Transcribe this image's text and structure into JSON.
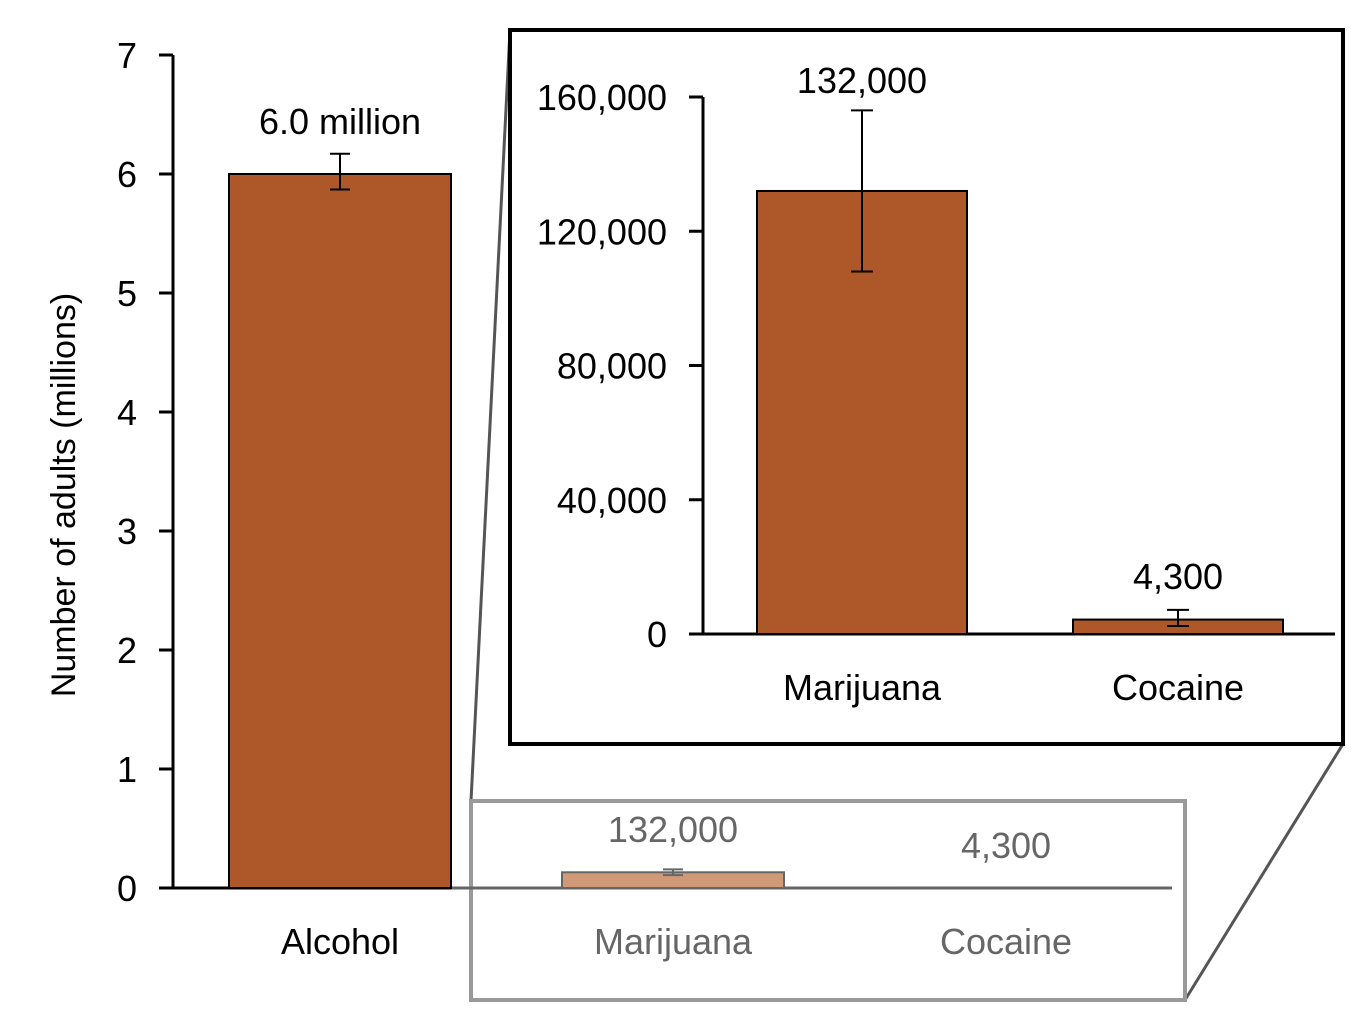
{
  "chart_data": [
    {
      "type": "bar",
      "ylabel": "Number of adults (millions)",
      "ylim": [
        0,
        7
      ],
      "yticks": [
        "0",
        "1",
        "2",
        "3",
        "4",
        "5",
        "6",
        "7"
      ],
      "categories": [
        "Alcohol",
        "Marijuana",
        "Cocaine"
      ],
      "values": [
        6.0,
        0.132,
        0.0043
      ],
      "error_low": [
        5.87,
        0.108,
        0.0024
      ],
      "error_high": [
        6.17,
        0.156,
        0.0072
      ],
      "data_labels": [
        "6.0 million",
        "132,000",
        "4,300"
      ],
      "highlighted_region_categories": [
        "Marijuana",
        "Cocaine"
      ],
      "colors": {
        "bar": "#AE5728",
        "faded_bar": "#D09A78",
        "faded_text": "#666666"
      }
    },
    {
      "type": "bar",
      "role": "inset zoom",
      "ylim": [
        0,
        160000
      ],
      "yticks": [
        "0",
        "40,000",
        "80,000",
        "120,000",
        "160,000"
      ],
      "categories": [
        "Marijuana",
        "Cocaine"
      ],
      "values": [
        132000,
        4300
      ],
      "error_low": [
        108000,
        2400
      ],
      "error_high": [
        156000,
        7200
      ],
      "data_labels": [
        "132,000",
        "4,300"
      ],
      "colors": {
        "bar": "#AE5728"
      }
    }
  ]
}
